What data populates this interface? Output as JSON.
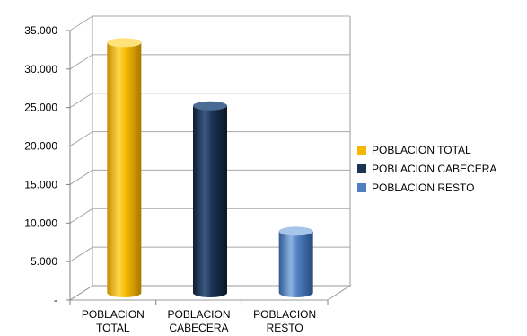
{
  "chart_data": {
    "type": "bar",
    "categories": [
      "POBLACION TOTAL",
      "POBLACION CABECERA",
      "POBLACION RESTO"
    ],
    "category_lines": [
      [
        "POBLACION",
        "TOTAL"
      ],
      [
        "POBLACION",
        "CABECERA"
      ],
      [
        "POBLACION",
        "RESTO"
      ]
    ],
    "values": [
      32500,
      24300,
      8000
    ],
    "colors": [
      "#f5b800",
      "#1c3454",
      "#4f7fbf"
    ],
    "ylim": [
      0,
      35000
    ],
    "yticks": [
      0,
      5000,
      10000,
      15000,
      20000,
      25000,
      30000,
      35000
    ],
    "ytick_labels": [
      "-",
      "5.000",
      "10.000",
      "15.000",
      "20.000",
      "25.000",
      "30.000",
      "35.000"
    ],
    "grid": true,
    "legend_position": "right",
    "style": "3d-cylinder"
  },
  "legend": {
    "items": [
      {
        "label": "POBLACION TOTAL",
        "color": "#f5b800"
      },
      {
        "label": "POBLACION CABECERA",
        "color": "#1c3454"
      },
      {
        "label": "POBLACION RESTO",
        "color": "#4f7fbf"
      }
    ]
  }
}
